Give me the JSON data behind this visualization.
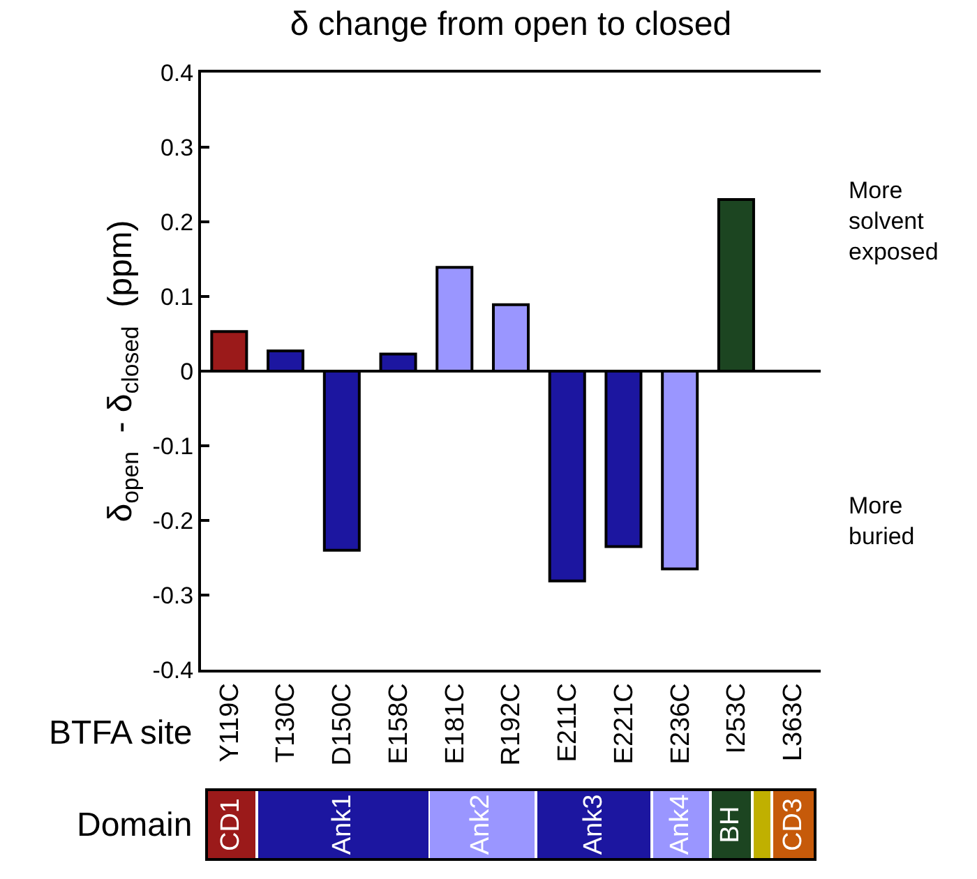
{
  "chart_data": {
    "type": "bar",
    "title": "δ change from open to closed",
    "xlabel": "BTFA site",
    "ylabel": "δ$_{open}$  - δ$_{closed}$  (ppm)",
    "categories": [
      "Y119C",
      "T130C",
      "D150C",
      "E158C",
      "E181C",
      "R192C",
      "E211C",
      "E221C",
      "E236C",
      "I253C",
      "L363C"
    ],
    "values": [
      0.053,
      0.027,
      -0.24,
      0.023,
      0.139,
      0.089,
      -0.281,
      -0.235,
      -0.265,
      0.23,
      null
    ],
    "colors": [
      "#9b1a1a",
      "#1c16a0",
      "#1c16a0",
      "#1c16a0",
      "#9a96ff",
      "#9a96ff",
      "#1c16a0",
      "#1c16a0",
      "#9a96ff",
      "#1c4521",
      "#c65a0a"
    ],
    "ylim": [
      -0.4,
      0.4
    ],
    "yticks": [
      -0.4,
      -0.3,
      -0.2,
      -0.1,
      0,
      0.1,
      0.2,
      0.3,
      0.4
    ],
    "annotations": [
      "More solvent exposed",
      "More buried",
      "Domain",
      "CD1",
      "Ank1",
      "Ank2",
      "Ank3",
      "Ank4",
      "BH",
      "CD3"
    ]
  }
}
